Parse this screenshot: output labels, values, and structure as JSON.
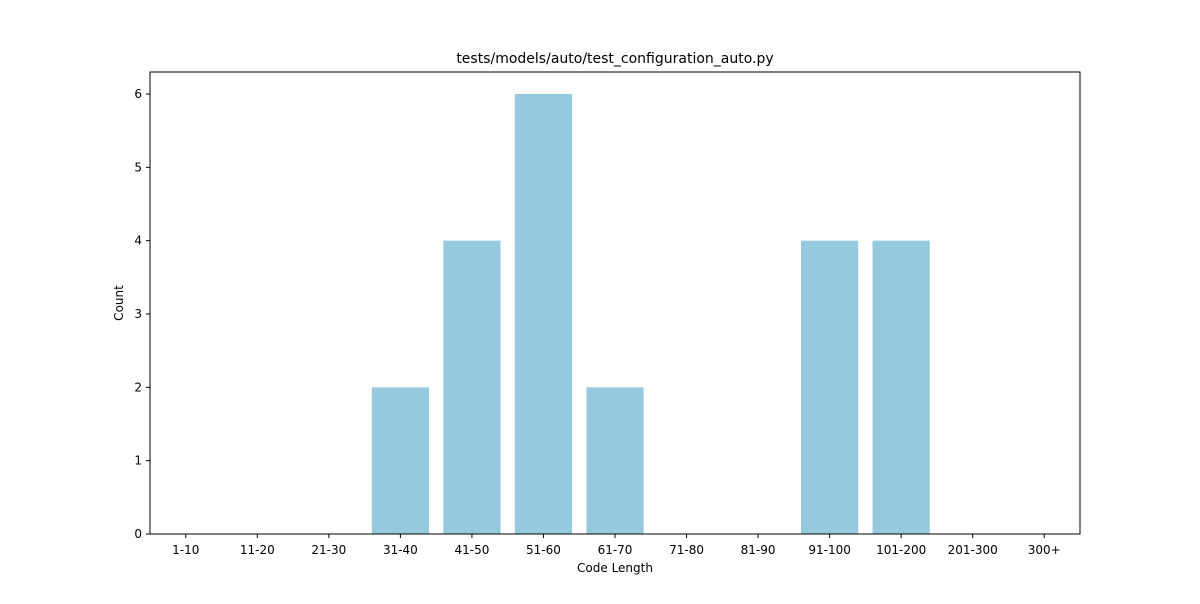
{
  "chart_data": {
    "type": "bar",
    "title": "tests/models/auto/test_configuration_auto.py",
    "xlabel": "Code Length",
    "ylabel": "Count",
    "categories": [
      "1-10",
      "11-20",
      "21-30",
      "31-40",
      "41-50",
      "51-60",
      "61-70",
      "71-80",
      "81-90",
      "91-100",
      "101-200",
      "201-300",
      "300+"
    ],
    "values": [
      0,
      0,
      0,
      2,
      4,
      6,
      2,
      0,
      0,
      4,
      4,
      0,
      0
    ],
    "ylim": [
      0,
      6.3
    ],
    "yticks": [
      "0",
      "1",
      "2",
      "3",
      "4",
      "5",
      "6"
    ],
    "bar_color": "#96c9dd",
    "grid": false,
    "legend": "none"
  }
}
